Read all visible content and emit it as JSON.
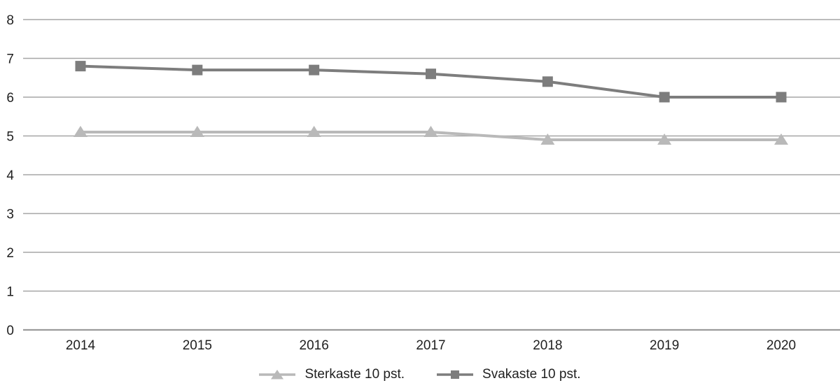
{
  "chart_data": {
    "type": "line",
    "x": [
      "2014",
      "2015",
      "2016",
      "2017",
      "2018",
      "2019",
      "2020"
    ],
    "series": [
      {
        "name": "Sterkaste 10 pst.",
        "values": [
          5.1,
          5.1,
          5.1,
          5.1,
          4.9,
          4.9,
          4.9
        ],
        "color": "#b9b9b9",
        "marker": "triangle"
      },
      {
        "name": "Svakaste 10 pst.",
        "values": [
          6.8,
          6.7,
          6.7,
          6.6,
          6.4,
          6.0,
          6.0
        ],
        "color": "#7d7d7d",
        "marker": "square"
      }
    ],
    "title": "",
    "xlabel": "",
    "ylabel": "",
    "ylim": [
      0,
      8
    ],
    "ytick_step": 1,
    "grid": true,
    "gridline_color": "#a6a6a6",
    "axis_line_color": "#9b9b9b",
    "legend_position": "bottom"
  }
}
